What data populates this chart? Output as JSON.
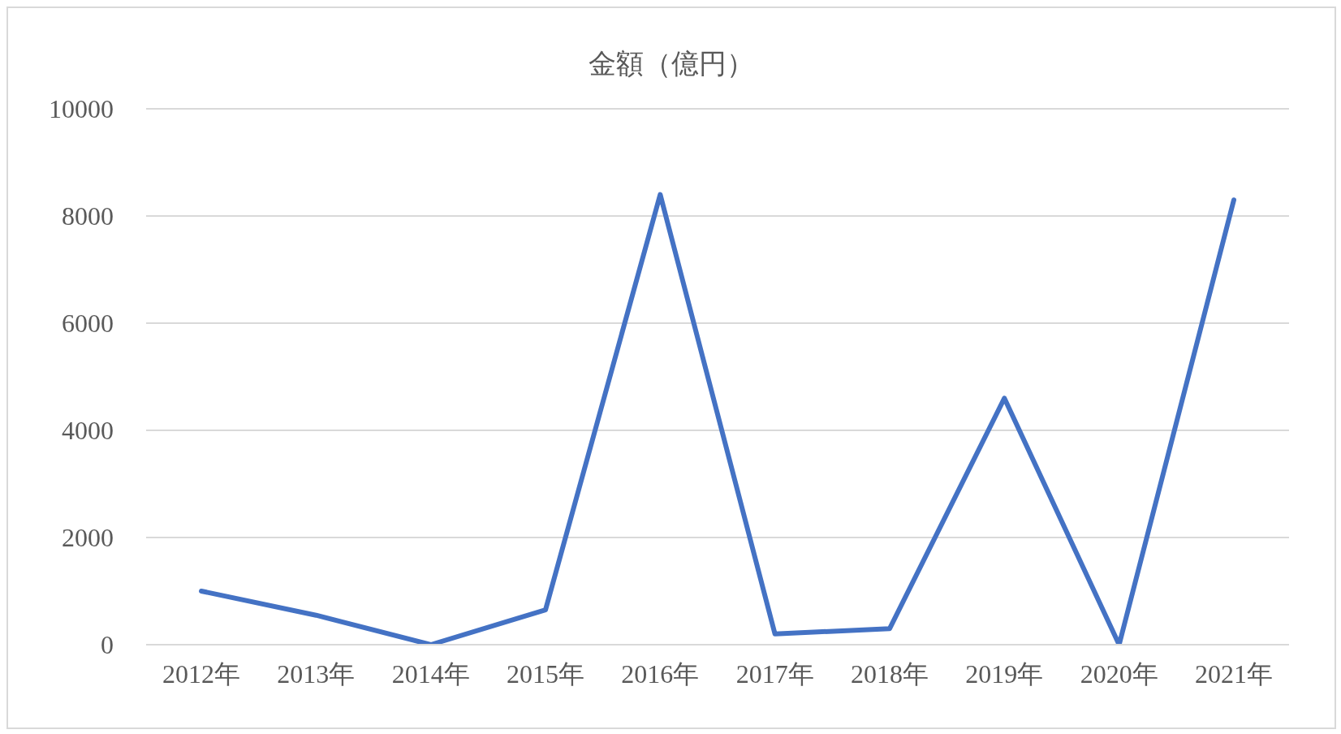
{
  "chart_data": {
    "type": "line",
    "title": "金額（億円）",
    "categories": [
      "2012年",
      "2013年",
      "2014年",
      "2015年",
      "2016年",
      "2017年",
      "2018年",
      "2019年",
      "2020年",
      "2021年"
    ],
    "series": [
      {
        "color": "#4472c4",
        "values": [
          1000,
          550,
          0,
          650,
          8400,
          200,
          300,
          4600,
          0,
          8300
        ]
      }
    ],
    "ylim": [
      0,
      10000
    ],
    "yticks": [
      0,
      2000,
      4000,
      6000,
      8000,
      10000
    ],
    "grid": "y",
    "legend": false,
    "marker": "none",
    "line_style": "solid"
  }
}
